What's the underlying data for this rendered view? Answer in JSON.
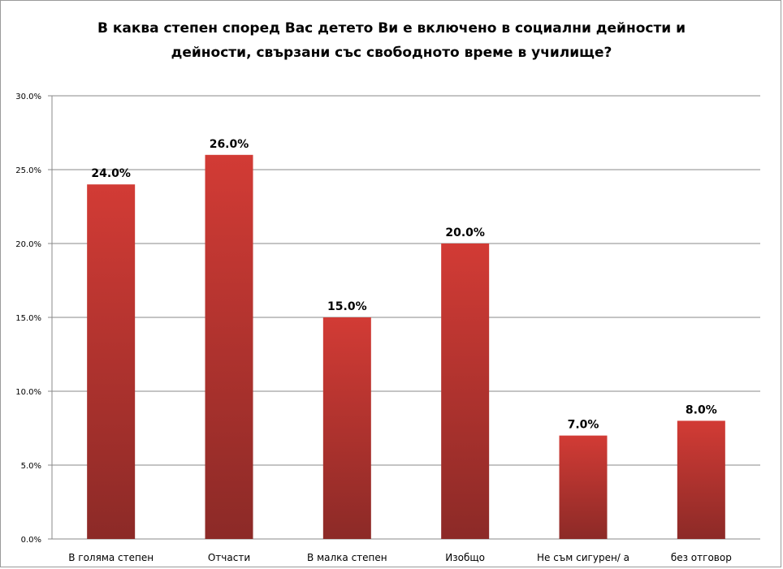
{
  "chart_data": {
    "type": "bar",
    "title_lines": [
      "В каква степен според Вас детето Ви е включено в социални дейности и",
      "дейности, свързани със свободното време в училище?"
    ],
    "categories": [
      "В голяма степен",
      "Отчасти",
      "В малка степен",
      "Изобщо",
      "Не съм сигурен/ а",
      "без отговор"
    ],
    "values": [
      24.0,
      26.0,
      15.0,
      20.0,
      7.0,
      8.0
    ],
    "data_labels": [
      "24.0%",
      "26.0%",
      "15.0%",
      "20.0%",
      "7.0%",
      "8.0%"
    ],
    "y_ticks": [
      "0.0%",
      "5.0%",
      "10.0%",
      "15.0%",
      "20.0%",
      "25.0%",
      "30.0%"
    ],
    "ylim": [
      0,
      30
    ],
    "grid": true,
    "legend": "none",
    "bar_color_top": "#d23b35",
    "bar_color_bottom": "#8c2a27"
  }
}
